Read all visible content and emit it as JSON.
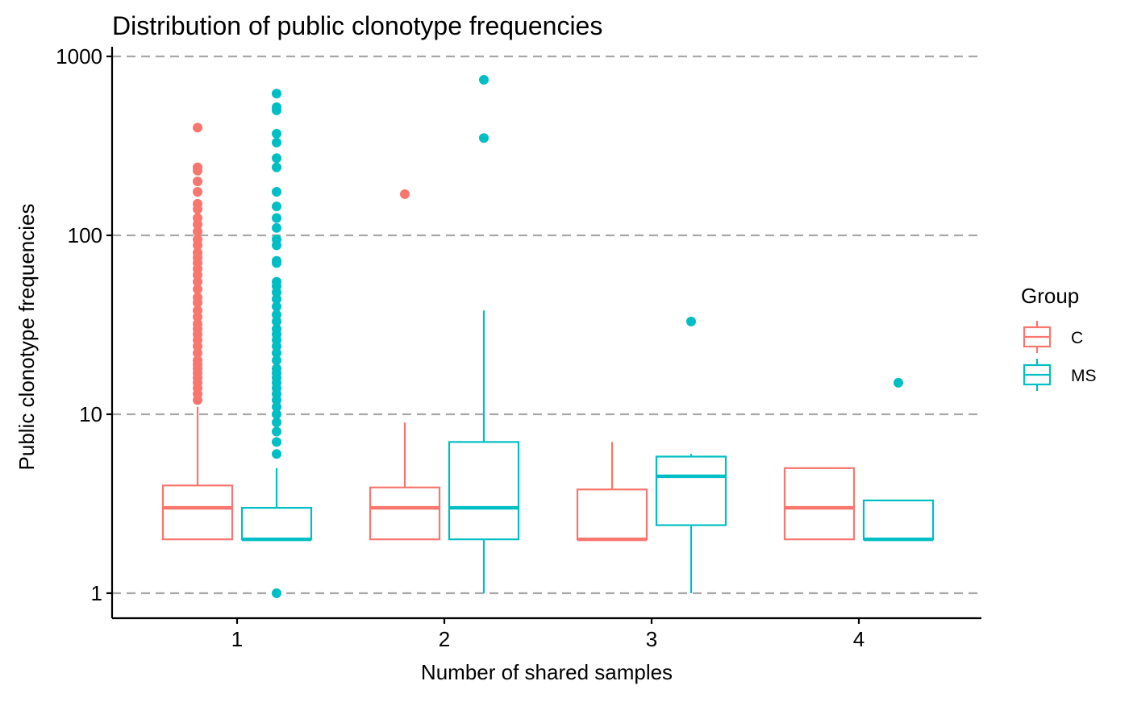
{
  "chart_data": {
    "type": "boxplot",
    "title": "Distribution of public clonotype frequencies",
    "xlabel": "Number of shared samples",
    "ylabel": "Public clonotype frequencies",
    "y_scale": "log10",
    "ylim": [
      0.87,
      1000
    ],
    "y_ticks": [
      1,
      10,
      100,
      1000
    ],
    "y_tick_labels": [
      "1",
      "10",
      "100",
      "1000"
    ],
    "grid": "horizontal dashed major lines",
    "categories": [
      "1",
      "2",
      "3",
      "4"
    ],
    "legend": {
      "title": "Group",
      "placement": "right"
    },
    "series": [
      {
        "name": "C",
        "color": "#F8766D",
        "boxes": [
          {
            "category": "1",
            "q1": 2,
            "median": 3,
            "q3": 4,
            "whisker_low": 2,
            "whisker_high": 11,
            "outliers": [
              12,
              13,
              14,
              15,
              16,
              17,
              18,
              19,
              20,
              22,
              24,
              26,
              28,
              30,
              32,
              35,
              38,
              42,
              45,
              50,
              55,
              60,
              65,
              70,
              75,
              80,
              88,
              95,
              105,
              115,
              125,
              140,
              150,
              175,
              200,
              230,
              240,
              400
            ]
          },
          {
            "category": "2",
            "q1": 2,
            "median": 3,
            "q3": 3.9,
            "whisker_low": 2,
            "whisker_high": 9,
            "outliers": [
              170
            ]
          },
          {
            "category": "3",
            "q1": 2,
            "median": 2,
            "q3": 3.8,
            "whisker_low": 2,
            "whisker_high": 7,
            "outliers": []
          },
          {
            "category": "4",
            "q1": 2,
            "median": 3,
            "q3": 5,
            "whisker_low": 2,
            "whisker_high": 5,
            "outliers": []
          }
        ]
      },
      {
        "name": "MS",
        "color": "#00BFC4",
        "boxes": [
          {
            "category": "1",
            "q1": 2,
            "median": 2,
            "q3": 3,
            "whisker_low": 2,
            "whisker_high": 5,
            "outliers": [
              1,
              6,
              7,
              8,
              9,
              10,
              11,
              12,
              13,
              14,
              15,
              16,
              17,
              18,
              20,
              22,
              24,
              26,
              28,
              30,
              33,
              36,
              40,
              44,
              48,
              52,
              55,
              70,
              72,
              88,
              95,
              110,
              125,
              145,
              175,
              240,
              270,
              330,
              370,
              500,
              520,
              620
            ]
          },
          {
            "category": "2",
            "q1": 2,
            "median": 3,
            "q3": 7,
            "whisker_low": 1,
            "whisker_high": 38,
            "outliers": [
              350,
              740
            ]
          },
          {
            "category": "3",
            "q1": 2.4,
            "median": 4.5,
            "q3": 5.8,
            "whisker_low": 1,
            "whisker_high": 6,
            "outliers": [
              33
            ]
          },
          {
            "category": "4",
            "q1": 2,
            "median": 2,
            "q3": 3.3,
            "whisker_low": 2,
            "whisker_high": 3.3,
            "outliers": [
              15
            ]
          }
        ]
      }
    ]
  }
}
